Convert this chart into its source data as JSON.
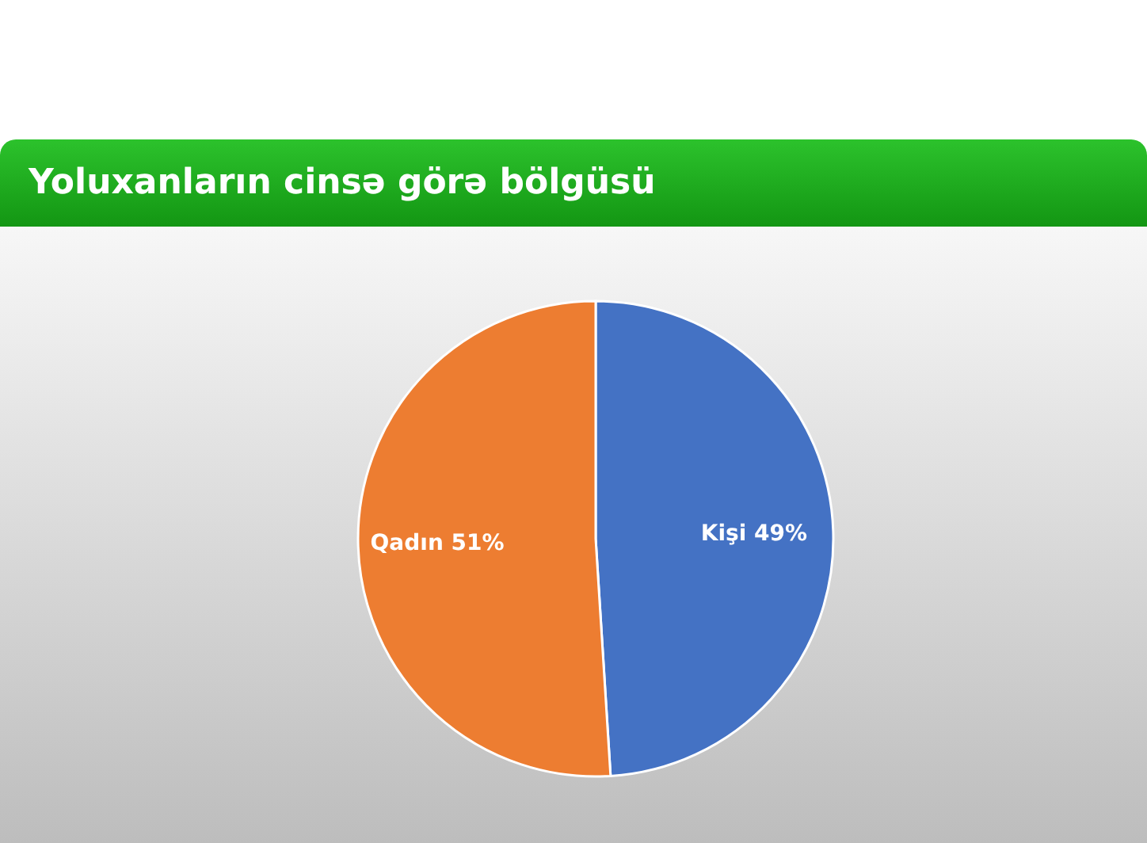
{
  "chart_data": {
    "type": "pie",
    "title": "Yoluxanların cinsə görə bölgüsü",
    "categories": [
      "Kişi",
      "Qadın"
    ],
    "values": [
      49,
      51
    ],
    "value_labels": [
      "49%",
      "51%"
    ],
    "colors": [
      "#4472c4",
      "#ed7d31"
    ]
  }
}
